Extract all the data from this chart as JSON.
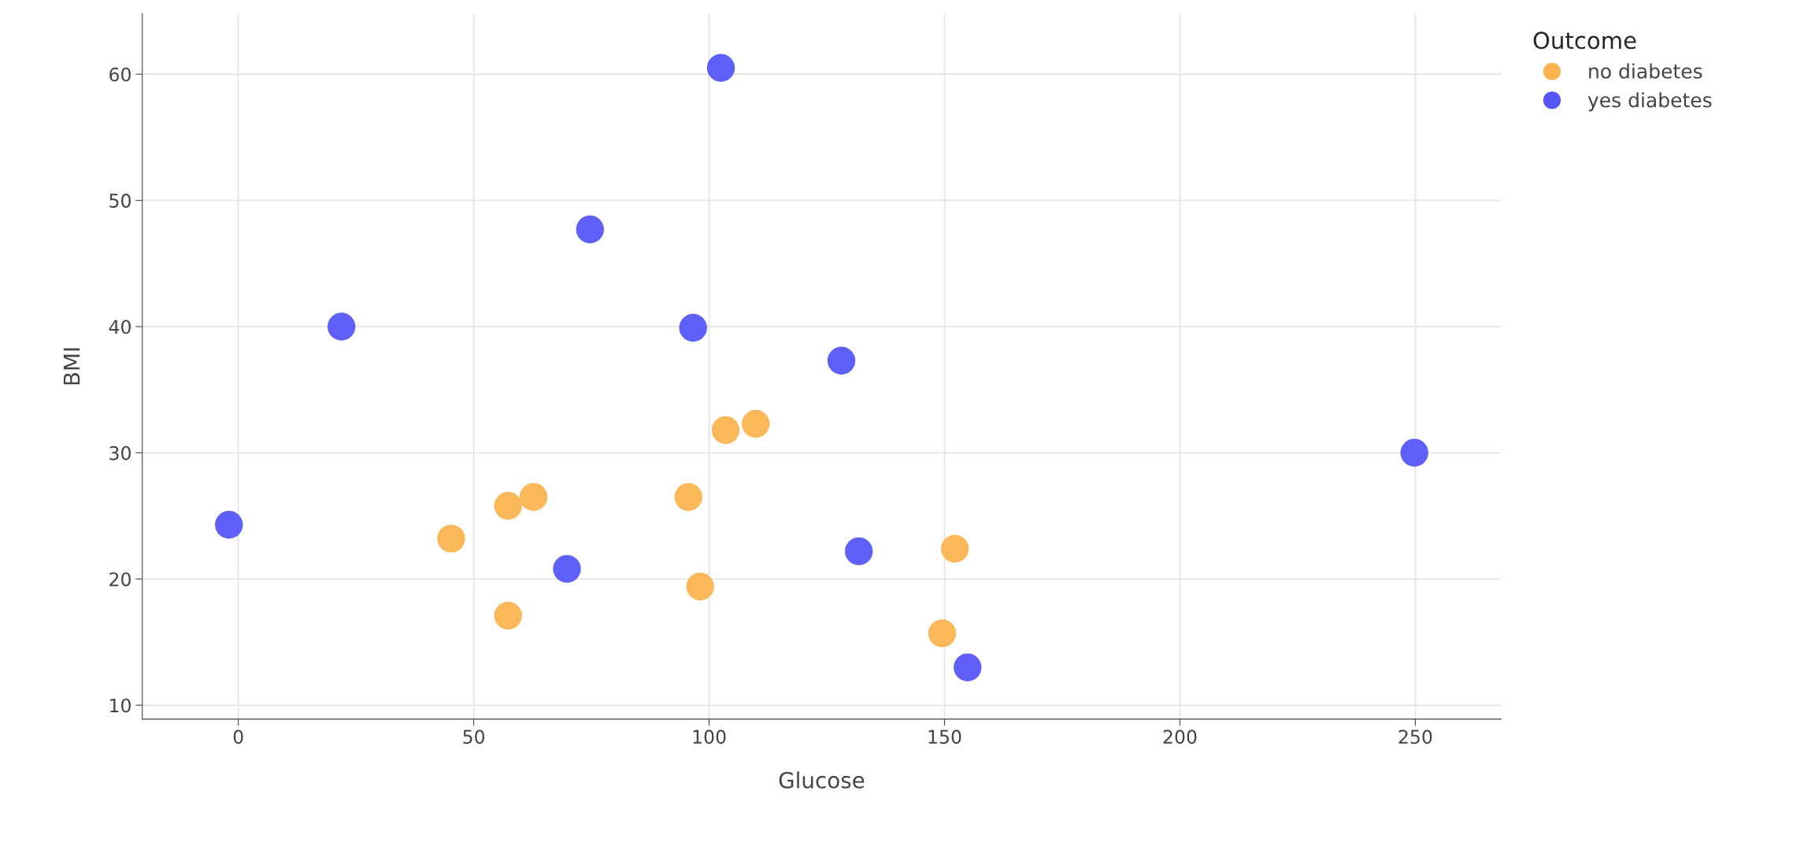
{
  "chart_data": {
    "type": "scatter",
    "xlabel": "Glucose",
    "ylabel": "BMI",
    "legend_title": "Outcome",
    "legend": "top right",
    "grid": true,
    "marker": "circle",
    "xlim": [
      -20.4,
      268.2
    ],
    "ylim": [
      8.9,
      64.8
    ],
    "xticks": [
      0,
      50,
      100,
      150,
      200,
      250
    ],
    "yticks": [
      10,
      20,
      30,
      40,
      50,
      60
    ],
    "series": [
      {
        "name": "no diabetes",
        "color": "#fbb450",
        "x": [
          109.9,
          103.5,
          62.7,
          57.3,
          95.6,
          45.2,
          152.2,
          98.1,
          57.3,
          149.5
        ],
        "values": [
          32.3,
          31.8,
          26.5,
          25.8,
          26.5,
          23.2,
          22.4,
          19.4,
          17.1,
          15.7
        ]
      },
      {
        "name": "yes diabetes",
        "color": "#5656fa",
        "x": [
          102.5,
          74.7,
          21.9,
          96.6,
          128.1,
          249.8,
          -2.0,
          69.8,
          131.8,
          154.9
        ],
        "values": [
          60.5,
          47.7,
          40.0,
          39.9,
          37.3,
          30.0,
          24.3,
          20.8,
          22.2,
          13.0
        ]
      }
    ]
  }
}
